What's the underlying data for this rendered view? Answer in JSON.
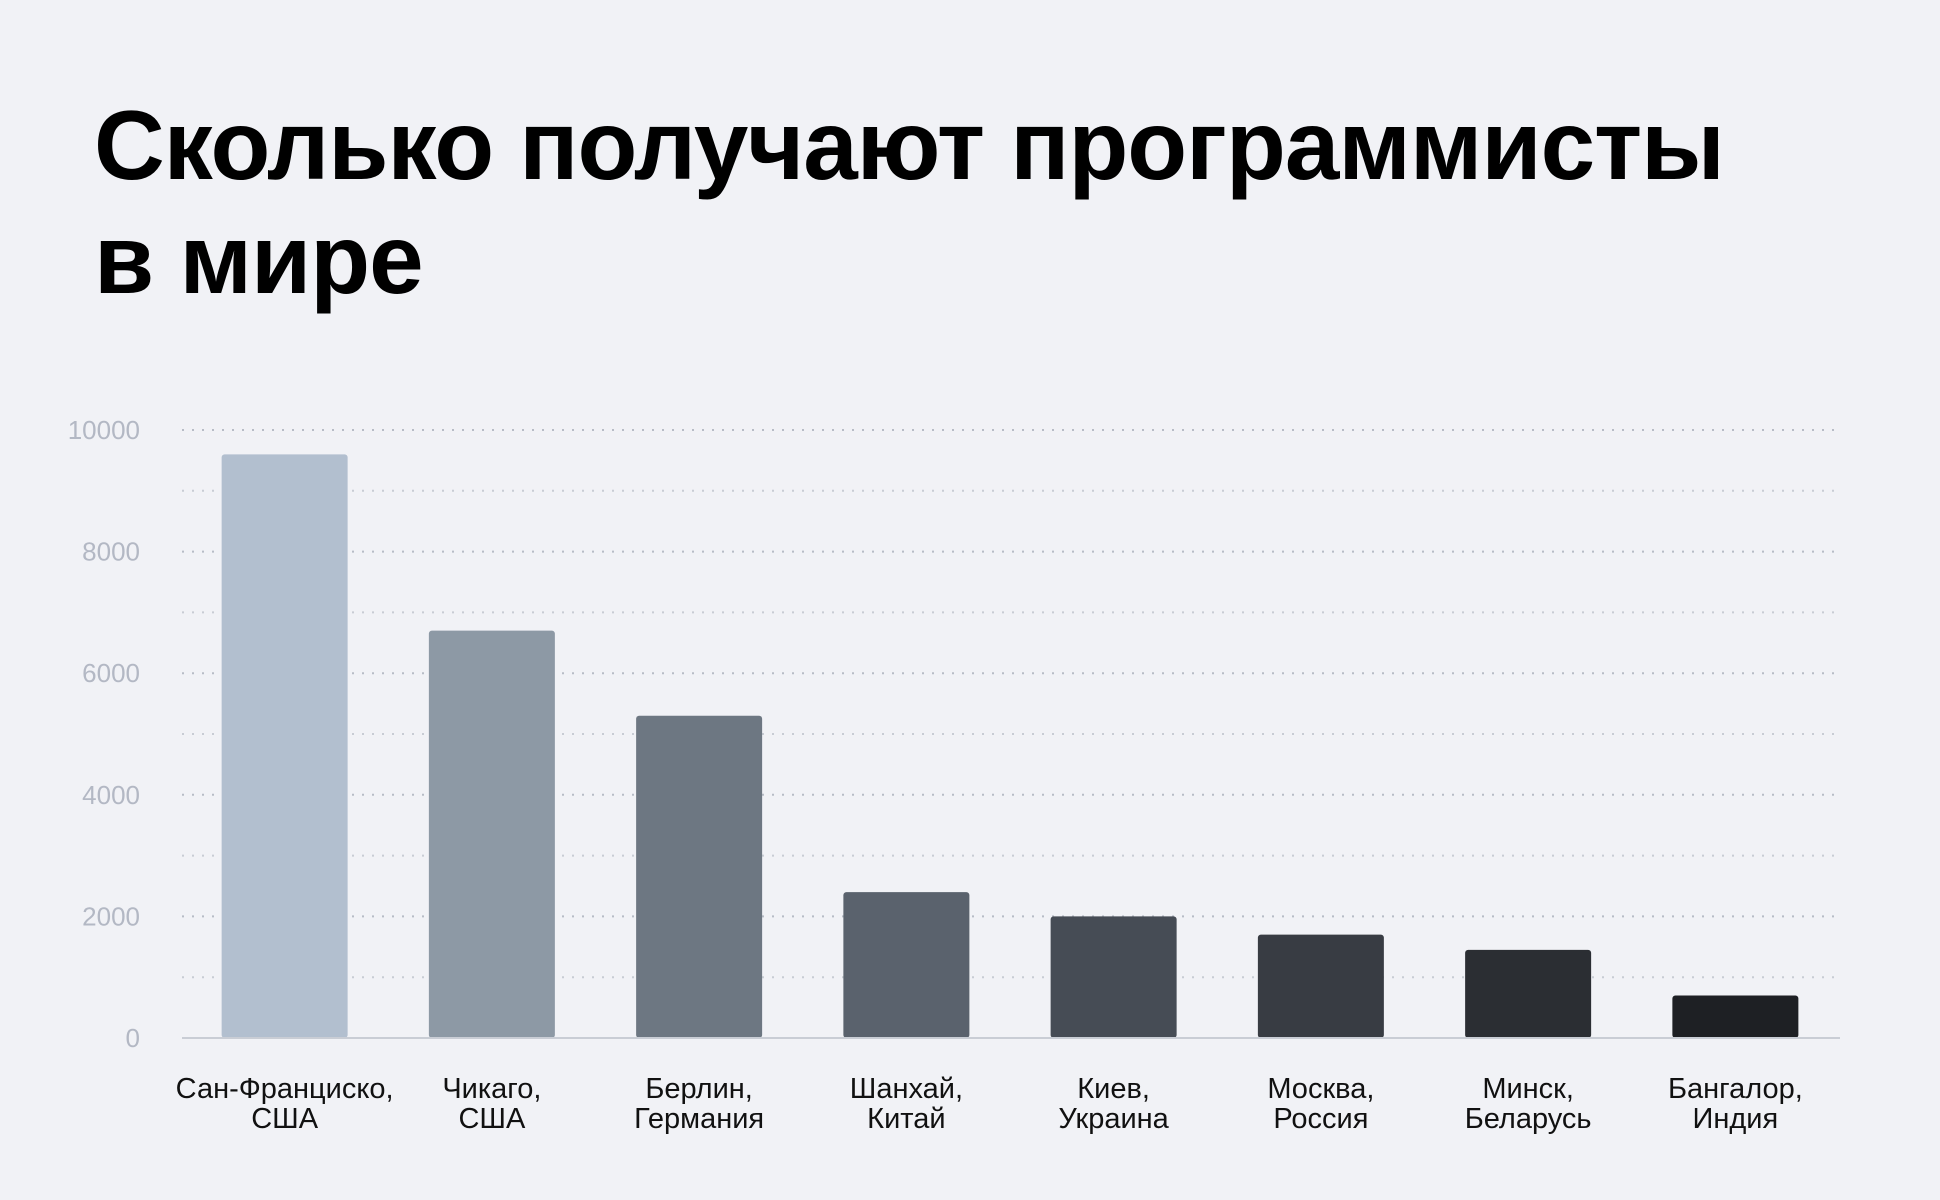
{
  "chart_data": {
    "type": "bar",
    "title_lines": [
      "Сколько получают программисты",
      "в мире"
    ],
    "categories": [
      [
        "Сан-Франциско,",
        "США"
      ],
      [
        "Чикаго,",
        "США"
      ],
      [
        "Берлин,",
        "Германия"
      ],
      [
        "Шанхай,",
        "Китай"
      ],
      [
        "Киев,",
        "Украина"
      ],
      [
        "Москва,",
        "Россия"
      ],
      [
        "Минск,",
        "Беларусь"
      ],
      [
        "Бангалор,",
        "Индия"
      ]
    ],
    "values": [
      9600,
      6700,
      5300,
      2400,
      2000,
      1700,
      1450,
      700
    ],
    "bar_colors": [
      "#b2bfcf",
      "#8d99a5",
      "#6d7782",
      "#5a626d",
      "#464c55",
      "#383c43",
      "#2b2e33",
      "#1e2024"
    ],
    "y_ticks": [
      0,
      2000,
      4000,
      6000,
      8000,
      10000
    ],
    "y_tick_labels": [
      "0",
      "2000",
      "4000",
      "6000",
      "8000",
      "10000"
    ],
    "ylim": [
      0,
      10000
    ],
    "grid": true,
    "colors": {
      "background": "#f1f2f6",
      "grid": "#b7bcc6",
      "tick_text": "#b3b8c4",
      "category_text": "#111111",
      "axis": "#c9cdd5"
    }
  }
}
